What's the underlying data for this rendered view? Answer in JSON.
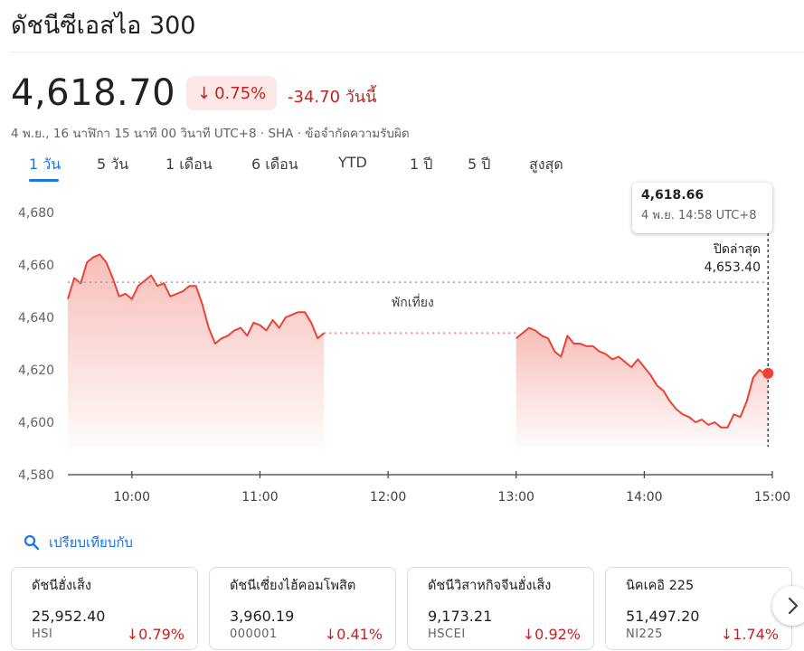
{
  "title": "ดัชนีซีเอสไอ 300",
  "price": "4,618.70",
  "change_pct": "0.75%",
  "change_abs": "-34.70 วันนี้",
  "subtitle": "4 พ.ย., 16 นาฬิกา 15 นาที 00 วินาที UTC+8 · SHA · ข้อจำกัดความรับผิด",
  "tabs": [
    "1 วัน",
    "5 วัน",
    "1 เดือน",
    "6 เดือน",
    "YTD",
    "1 ปี",
    "5 ปี",
    "สูงสุด"
  ],
  "active_tab": "1 วัน",
  "tooltip": {
    "value": "4,618.66",
    "time": "4 พ.ย. 14:58 UTC+8"
  },
  "prev_close": {
    "label": "ปิดล่าสุด",
    "value": "4,653.40"
  },
  "lunch_label": "พักเที่ยง",
  "compare_label": "เปรียบเทียบกับ",
  "colors": {
    "down": "#c5221f",
    "line": "#ea4335",
    "accent": "#1a73e8"
  },
  "chart_data": {
    "type": "area",
    "ylim": [
      4580,
      4680
    ],
    "yticks": [
      4680,
      4660,
      4640,
      4620,
      4600,
      4580
    ],
    "ytick_labels": [
      "4,680",
      "4,660",
      "4,640",
      "4,620",
      "4,600",
      "4,580"
    ],
    "xticks": [
      "10:00",
      "11:00",
      "12:00",
      "13:00",
      "14:00",
      "15:00"
    ],
    "prev_close": 4653.4,
    "series": [
      {
        "session": "morning",
        "x": [
          "09:30",
          "09:33",
          "09:36",
          "09:39",
          "09:42",
          "09:45",
          "09:48",
          "09:51",
          "09:54",
          "09:57",
          "10:00",
          "10:03",
          "10:06",
          "10:09",
          "10:12",
          "10:15",
          "10:18",
          "10:21",
          "10:24",
          "10:27",
          "10:30",
          "10:33",
          "10:36",
          "10:39",
          "10:42",
          "10:45",
          "10:48",
          "10:51",
          "10:54",
          "10:57",
          "11:00",
          "11:03",
          "11:06",
          "11:09",
          "11:12",
          "11:15",
          "11:18",
          "11:21",
          "11:24",
          "11:27",
          "11:30"
        ],
        "y": [
          4647,
          4655,
          4653,
          4661,
          4663,
          4664,
          4661,
          4655,
          4648,
          4649,
          4647,
          4652,
          4654,
          4656,
          4652,
          4653,
          4648,
          4649,
          4650,
          4652,
          4652,
          4645,
          4636,
          4630,
          4632,
          4633,
          4635,
          4636,
          4633,
          4638,
          4637,
          4635,
          4639,
          4636,
          4640,
          4641,
          4642,
          4642,
          4638,
          4632,
          4634
        ]
      },
      {
        "session": "afternoon",
        "x": [
          "13:00",
          "13:03",
          "13:06",
          "13:09",
          "13:12",
          "13:15",
          "13:18",
          "13:21",
          "13:24",
          "13:27",
          "13:30",
          "13:33",
          "13:36",
          "13:39",
          "13:42",
          "13:45",
          "13:48",
          "13:51",
          "13:54",
          "13:57",
          "14:00",
          "14:03",
          "14:06",
          "14:09",
          "14:12",
          "14:15",
          "14:18",
          "14:21",
          "14:24",
          "14:27",
          "14:30",
          "14:33",
          "14:36",
          "14:39",
          "14:42",
          "14:45",
          "14:48",
          "14:51",
          "14:54",
          "14:57",
          "14:58"
        ],
        "y": [
          4632,
          4634,
          4636,
          4635,
          4633,
          4632,
          4627,
          4625,
          4633,
          4630,
          4630,
          4629,
          4629,
          4627,
          4626,
          4624,
          4625,
          4623,
          4621,
          4624,
          4621,
          4618,
          4614,
          4612,
          4608,
          4605,
          4603,
          4602,
          4600,
          4601,
          4599,
          4600,
          4598,
          4598,
          4603,
          4602,
          4608,
          4617,
          4620,
          4618,
          4618.66
        ]
      }
    ]
  },
  "compare_cards": [
    {
      "name": "ดัชนีฮั่งเส็ง",
      "value": "25,952.40",
      "symbol": "HSI",
      "change": "0.79%"
    },
    {
      "name": "ดัชนีเซี่ยงไฮ้คอมโพสิต",
      "value": "3,960.19",
      "symbol": "000001",
      "change": "0.41%"
    },
    {
      "name": "ดัชนีวิสาหกิจจีนฮั่งเส็ง",
      "value": "9,173.21",
      "symbol": "HSCEI",
      "change": "0.92%"
    },
    {
      "name": "นิคเคอิ 225",
      "value": "51,497.20",
      "symbol": "NI225",
      "change": "1.74%"
    }
  ]
}
